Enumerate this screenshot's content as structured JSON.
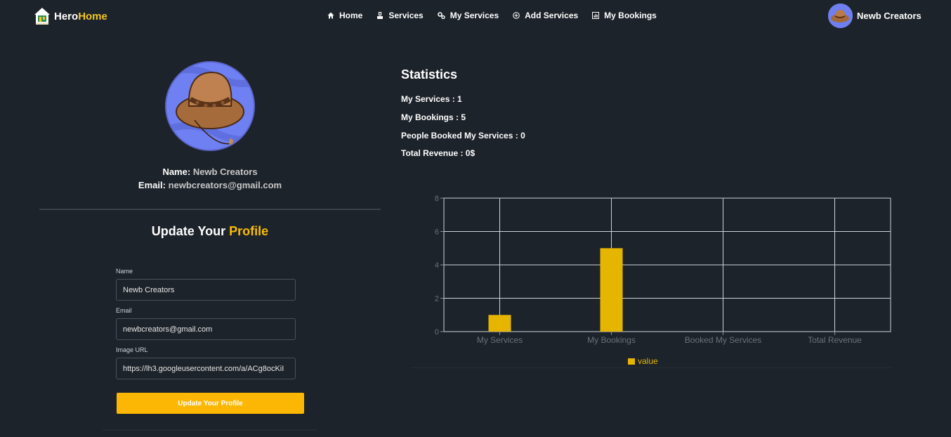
{
  "brand": {
    "part1": "Hero",
    "part2": "Home",
    "accent": "#f3c623"
  },
  "nav": {
    "items": [
      {
        "label": "Home",
        "icon": "home-icon"
      },
      {
        "label": "Services",
        "icon": "services-icon"
      },
      {
        "label": "My Services",
        "icon": "gears-icon"
      },
      {
        "label": "Add Services",
        "icon": "plus-circle-icon"
      },
      {
        "label": "My Bookings",
        "icon": "bookings-icon"
      }
    ]
  },
  "user": {
    "name": "Newb Creators"
  },
  "profile": {
    "name_label": "Name:",
    "name_value": "Newb Creators",
    "email_label": "Email:",
    "email_value": "newbcreators@gmail.com"
  },
  "update": {
    "title_part1": "Update Your",
    "title_part2": "Profile",
    "name_label": "Name",
    "name_value": "Newb Creators",
    "email_label": "Email",
    "email_value": "newbcreators@gmail.com",
    "image_label": "Image URL",
    "image_value": "https://lh3.googleusercontent.com/a/ACg8ocKiI",
    "submit_label": "Update Your Profile",
    "button_color": "#fbb703"
  },
  "statistics": {
    "title": "Statistics",
    "lines": [
      "My Services : 1",
      "My Bookings : 5",
      "People Booked My Services : 0",
      "Total Revenue : 0$"
    ]
  },
  "chart_data": {
    "type": "bar",
    "categories": [
      "My Services",
      "My Bookings",
      "Booked My Services",
      "Total Revenue"
    ],
    "series": [
      {
        "name": "value",
        "values": [
          1,
          5,
          0,
          0
        ],
        "color": "#e5b500"
      }
    ],
    "ylim": [
      0,
      8
    ],
    "yticks": [
      0,
      2,
      4,
      6,
      8
    ],
    "grid": true,
    "legend": "bottom-center"
  }
}
